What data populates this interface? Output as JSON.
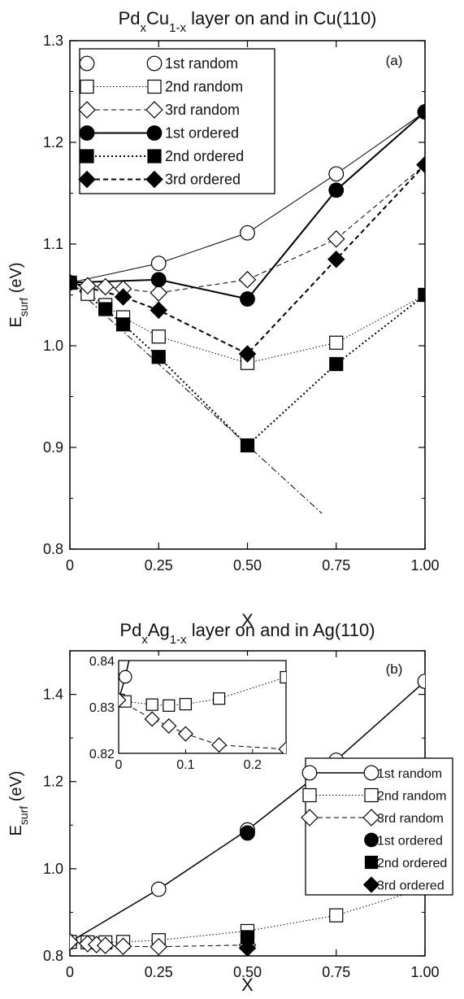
{
  "chart_data": [
    {
      "type": "line",
      "title_main": "Pd",
      "title_sub1": "x",
      "title_mid": "Cu",
      "title_sub2": "1-x",
      "title_rest": " layer on and in Cu(110)",
      "panel_label": "(a)",
      "xlabel": "X",
      "ylabel_main": "E",
      "ylabel_sub": "surf",
      "ylabel_unit": "(eV)",
      "xlim": [
        0,
        1.0
      ],
      "ylim": [
        0.8,
        1.3
      ],
      "xticks": [
        0,
        0.25,
        0.5,
        0.75,
        1.0
      ],
      "xtick_labels": [
        "0",
        "0.25",
        "0.50",
        "0.75",
        "1.00"
      ],
      "yticks": [
        0.8,
        0.9,
        1.0,
        1.1,
        1.2,
        1.3
      ],
      "ytick_labels": [
        "0.8",
        "0.9",
        "1.0",
        "1.1",
        "1.2",
        "1.3"
      ],
      "legend_position": "top-left",
      "series": [
        {
          "name": "1st random",
          "marker": "circle",
          "fill": "open",
          "dash": "",
          "width": 1,
          "x": [
            0,
            0.25,
            0.5,
            0.75,
            1.0
          ],
          "y": [
            1.062,
            1.081,
            1.111,
            1.169,
            1.23
          ]
        },
        {
          "name": "2nd random",
          "marker": "square",
          "fill": "open",
          "dash": "1.5 2.5",
          "width": 1,
          "x": [
            0,
            0.05,
            0.1,
            0.15,
            0.25,
            0.5,
            0.75,
            1.0
          ],
          "y": [
            1.062,
            1.051,
            1.04,
            1.028,
            1.009,
            0.983,
            1.003,
            1.05
          ]
        },
        {
          "name": "3rd random",
          "marker": "diamond",
          "fill": "open",
          "dash": "6 4",
          "width": 1,
          "x": [
            0,
            0.05,
            0.1,
            0.15,
            0.25,
            0.5,
            0.75,
            1.0
          ],
          "y": [
            1.062,
            1.059,
            1.058,
            1.056,
            1.052,
            1.065,
            1.105,
            1.178
          ]
        },
        {
          "name": "1st ordered",
          "marker": "circle",
          "fill": "filled",
          "dash": "",
          "width": 2,
          "x": [
            0,
            0.25,
            0.5,
            0.75,
            1.0
          ],
          "y": [
            1.062,
            1.065,
            1.046,
            1.153,
            1.23
          ]
        },
        {
          "name": "2nd ordered",
          "marker": "square",
          "fill": "filled",
          "dash": "2 3",
          "width": 2,
          "x": [
            0,
            0.1,
            0.15,
            0.25,
            0.5,
            0.75,
            1.0
          ],
          "y": [
            1.062,
            1.036,
            1.021,
            0.989,
            0.902,
            0.982,
            1.05
          ]
        },
        {
          "name": "3rd ordered",
          "marker": "diamond",
          "fill": "filled",
          "dash": "6 4",
          "width": 2,
          "x": [
            0,
            0.15,
            0.25,
            0.5,
            0.75,
            1.0
          ],
          "y": [
            1.062,
            1.048,
            1.035,
            0.992,
            1.085,
            1.178
          ]
        },
        {
          "name": "",
          "marker": "none",
          "fill": "none",
          "dash": "8 3 2 3",
          "width": 1,
          "legend": false,
          "x": [
            0,
            0.71
          ],
          "y": [
            1.062,
            0.835
          ]
        }
      ]
    },
    {
      "type": "line",
      "title_main": "Pd",
      "title_sub1": "x",
      "title_mid": "Ag",
      "title_sub2": "1-x",
      "title_rest": " layer on and in Ag(110)",
      "panel_label": "(b)",
      "xlabel": "X",
      "ylabel_main": "E",
      "ylabel_sub": "surf",
      "ylabel_unit": "(eV)",
      "xlim": [
        0,
        1.0
      ],
      "ylim": [
        0.8,
        1.5
      ],
      "xticks": [
        0,
        0.25,
        0.5,
        0.75,
        1.0
      ],
      "xtick_labels": [
        "0",
        "0.25",
        "0.50",
        "0.75",
        "1.00"
      ],
      "yticks": [
        0.8,
        1.0,
        1.2,
        1.4
      ],
      "ytick_labels": [
        "0.8",
        "1.0",
        "1.2",
        "1.4"
      ],
      "legend_position": "lower-right",
      "series": [
        {
          "name": "1st random",
          "marker": "circle",
          "fill": "open",
          "dash": "",
          "width": 1.5,
          "x": [
            0,
            0.25,
            0.5,
            0.75,
            1.0
          ],
          "y": [
            0.832,
            0.953,
            1.089,
            1.249,
            1.43
          ]
        },
        {
          "name": "2nd random",
          "marker": "square",
          "fill": "open",
          "dash": "1.5 2.5",
          "width": 1,
          "x": [
            0,
            0.05,
            0.1,
            0.15,
            0.25,
            0.5,
            0.75,
            1.0
          ],
          "y": [
            0.832,
            0.831,
            0.831,
            0.832,
            0.836,
            0.857,
            0.893,
            0.956
          ]
        },
        {
          "name": "3rd random",
          "marker": "diamond",
          "fill": "open",
          "dash": "6 4",
          "width": 1,
          "x": [
            0,
            0.05,
            0.075,
            0.1,
            0.15,
            0.25,
            0.5
          ],
          "y": [
            0.832,
            0.828,
            0.826,
            0.824,
            0.822,
            0.821,
            0.825
          ]
        },
        {
          "name": "1st ordered",
          "marker": "circle",
          "fill": "filled",
          "dash": "",
          "width": 0,
          "x": [
            0.5
          ],
          "y": [
            1.082
          ]
        },
        {
          "name": "2nd ordered",
          "marker": "square",
          "fill": "filled",
          "dash": "",
          "width": 0,
          "x": [
            0.5
          ],
          "y": [
            0.843
          ]
        },
        {
          "name": "3rd ordered",
          "marker": "diamond",
          "fill": "filled",
          "dash": "",
          "width": 0,
          "x": [
            0.5
          ],
          "y": [
            0.818
          ]
        }
      ],
      "inset": {
        "xlim": [
          0,
          0.25
        ],
        "ylim": [
          0.82,
          0.84
        ],
        "xticks": [
          0,
          0.1,
          0.2
        ],
        "xtick_labels": [
          "0",
          "0.1",
          "0.2"
        ],
        "yticks": [
          0.82,
          0.83,
          0.84
        ],
        "ytick_labels": [
          "0.82",
          "0.83",
          "0.84"
        ],
        "series": [
          {
            "name": "1st random",
            "marker": "circle",
            "fill": "open",
            "dash": "",
            "width": 1.5,
            "x": [
              0,
              0.01,
              0.02
            ],
            "y": [
              0.8315,
              0.8365,
              0.843
            ]
          },
          {
            "name": "2nd random",
            "marker": "square",
            "fill": "open",
            "dash": "1.5 2.5",
            "width": 1,
            "x": [
              0,
              0.01,
              0.05,
              0.075,
              0.1,
              0.15,
              0.25
            ],
            "y": [
              0.8315,
              0.8312,
              0.8305,
              0.8303,
              0.8306,
              0.8318,
              0.8364
            ]
          },
          {
            "name": "3rd random",
            "marker": "diamond",
            "fill": "open",
            "dash": "6 4",
            "width": 1,
            "x": [
              0,
              0.05,
              0.075,
              0.1,
              0.15,
              0.25
            ],
            "y": [
              0.8315,
              0.8274,
              0.8259,
              0.8242,
              0.8218,
              0.8209
            ]
          }
        ]
      }
    }
  ]
}
